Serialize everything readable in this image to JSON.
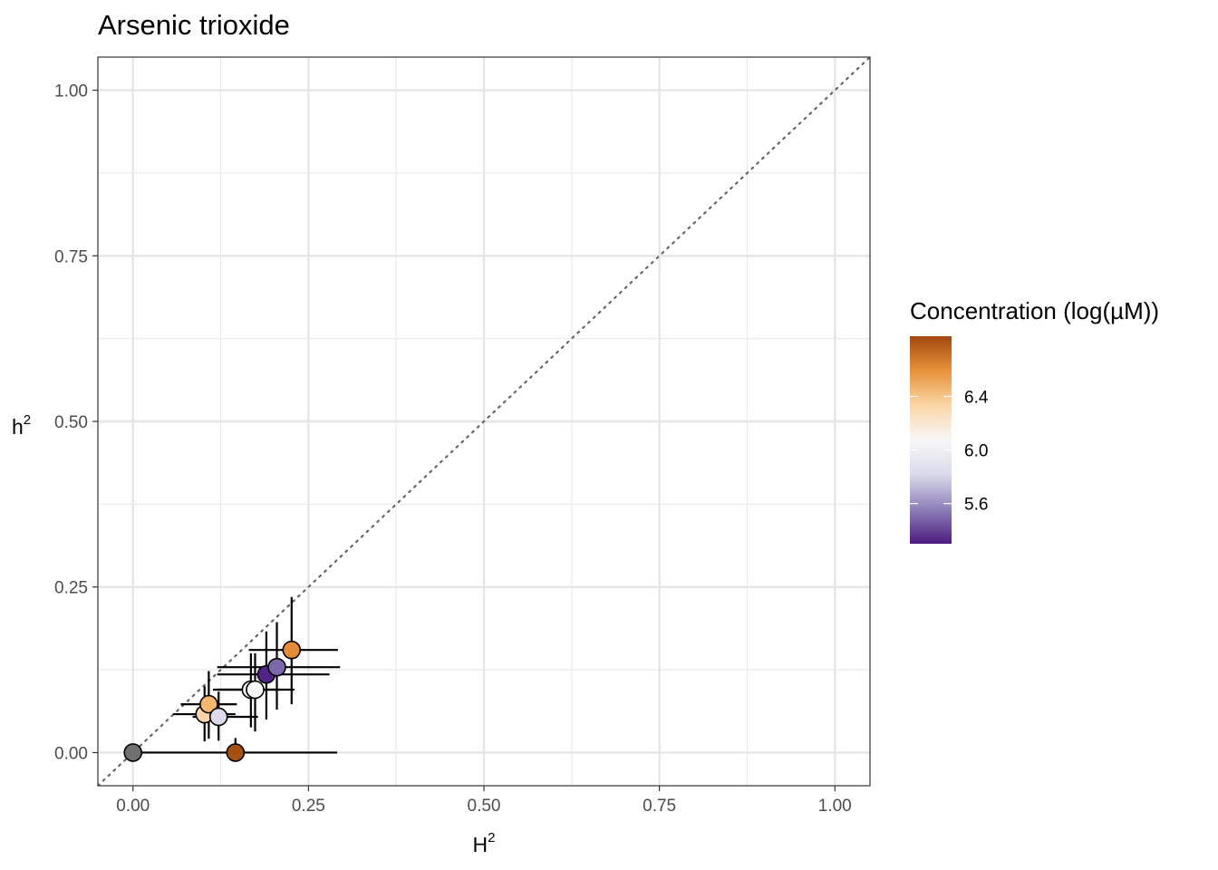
{
  "chart_data": {
    "type": "scatter",
    "title": "Arsenic trioxide",
    "xlabel": "H",
    "xlabel_sup": "2",
    "ylabel": "h",
    "ylabel_sup": "2",
    "xlim": [
      -0.05,
      1.05
    ],
    "ylim": [
      -0.05,
      1.05
    ],
    "x_ticks": [
      0.0,
      0.25,
      0.5,
      0.75,
      1.0
    ],
    "x_tick_labels": [
      "0.00",
      "0.25",
      "0.50",
      "0.75",
      "1.00"
    ],
    "y_ticks": [
      0.0,
      0.25,
      0.5,
      0.75,
      1.0
    ],
    "y_tick_labels": [
      "0.00",
      "0.25",
      "0.50",
      "0.75",
      "1.00"
    ],
    "grid": true,
    "reference_line": "y = x (dotted)",
    "legend": {
      "title": "Concentration (log(µM))",
      "placement": "right",
      "type": "colorbar",
      "range": [
        5.3,
        6.85
      ],
      "ticks": [
        5.6,
        6.0,
        6.4
      ],
      "tick_labels": [
        "5.6",
        "6.0",
        "6.4"
      ],
      "colors": [
        "#4b1a7e",
        "#8e80b9",
        "#d9daeb",
        "#f7f7f7",
        "#fbd6a6",
        "#e8923a",
        "#a3480e"
      ]
    },
    "points": [
      {
        "H2": 0.0,
        "h2": 0.0,
        "H2_lo": 0.0,
        "H2_hi": 0.0,
        "h2_lo": 0.0,
        "h2_hi": 0.0,
        "conc": null,
        "color": "#707070"
      },
      {
        "H2": 0.146,
        "h2": 0.0,
        "H2_lo": 0.0,
        "H2_hi": 0.291,
        "h2_lo": 0.0,
        "h2_hi": 0.022,
        "conc": 6.8,
        "color": "#a5500f"
      },
      {
        "H2": 0.102,
        "h2": 0.058,
        "H2_lo": 0.057,
        "H2_hi": 0.146,
        "h2_lo": 0.017,
        "h2_hi": 0.1,
        "conc": 6.3,
        "color": "#fbd5a9"
      },
      {
        "H2": 0.108,
        "h2": 0.073,
        "H2_lo": 0.068,
        "H2_hi": 0.148,
        "h2_lo": 0.021,
        "h2_hi": 0.123,
        "conc": 6.45,
        "color": "#f6b66d"
      },
      {
        "H2": 0.122,
        "h2": 0.054,
        "H2_lo": 0.085,
        "H2_hi": 0.178,
        "h2_lo": 0.018,
        "h2_hi": 0.092,
        "conc": 5.9,
        "color": "#dcdaeb"
      },
      {
        "H2": 0.168,
        "h2": 0.095,
        "H2_lo": 0.114,
        "H2_hi": 0.21,
        "h2_lo": 0.038,
        "h2_hi": 0.15,
        "conc": 6.0,
        "color": "#efeff2"
      },
      {
        "H2": 0.174,
        "h2": 0.095,
        "H2_lo": 0.12,
        "H2_hi": 0.23,
        "h2_lo": 0.032,
        "h2_hi": 0.15,
        "conc": 6.05,
        "color": "#f7f7f7"
      },
      {
        "H2": 0.19,
        "h2": 0.118,
        "H2_lo": 0.12,
        "H2_hi": 0.28,
        "h2_lo": 0.05,
        "h2_hi": 0.183,
        "conc": 5.35,
        "color": "#4f2486"
      },
      {
        "H2": 0.205,
        "h2": 0.129,
        "H2_lo": 0.12,
        "H2_hi": 0.295,
        "h2_lo": 0.065,
        "h2_hi": 0.197,
        "conc": 5.55,
        "color": "#7a68ab"
      },
      {
        "H2": 0.226,
        "h2": 0.155,
        "H2_lo": 0.165,
        "H2_hi": 0.292,
        "h2_lo": 0.073,
        "h2_hi": 0.235,
        "conc": 6.6,
        "color": "#e58b35"
      }
    ]
  }
}
